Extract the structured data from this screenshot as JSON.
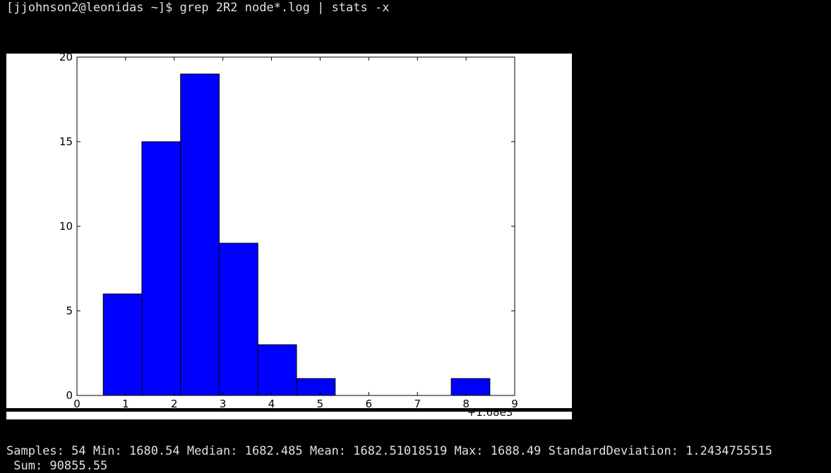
{
  "terminal": {
    "prompt_line": "[jjohnson2@leonidas ~]$ grep 2R2 node*.log | stats -x",
    "stats_line": "Samples: 54 Min: 1680.54 Median: 1682.485 Mean: 1682.51018519 Max: 1688.49 StandardDeviation: 1.2434755515",
    "sum_line": " Sum: 90855.55"
  },
  "chart_data": {
    "type": "bar",
    "title": "",
    "xlabel": "",
    "ylabel": "",
    "x_offset_label": "+1.68e3",
    "xlim": [
      0,
      9
    ],
    "ylim": [
      0,
      20
    ],
    "xticks": [
      "0",
      "1",
      "2",
      "3",
      "4",
      "5",
      "6",
      "7",
      "8",
      "9"
    ],
    "yticks": [
      "0",
      "5",
      "10",
      "15",
      "20"
    ],
    "bins": [
      {
        "x0": 0.54,
        "x1": 1.335,
        "value": 6
      },
      {
        "x0": 1.335,
        "x1": 2.13,
        "value": 15
      },
      {
        "x0": 2.13,
        "x1": 2.925,
        "value": 19
      },
      {
        "x0": 2.925,
        "x1": 3.72,
        "value": 9
      },
      {
        "x0": 3.72,
        "x1": 4.515,
        "value": 3
      },
      {
        "x0": 4.515,
        "x1": 5.31,
        "value": 1
      },
      {
        "x0": 5.31,
        "x1": 6.105,
        "value": 0
      },
      {
        "x0": 6.105,
        "x1": 6.9,
        "value": 0
      },
      {
        "x0": 6.9,
        "x1": 7.695,
        "value": 0
      },
      {
        "x0": 7.695,
        "x1": 8.49,
        "value": 1
      }
    ],
    "bar_color": "#0000ff",
    "edge_color": "#000000",
    "background": "#ffffff"
  }
}
